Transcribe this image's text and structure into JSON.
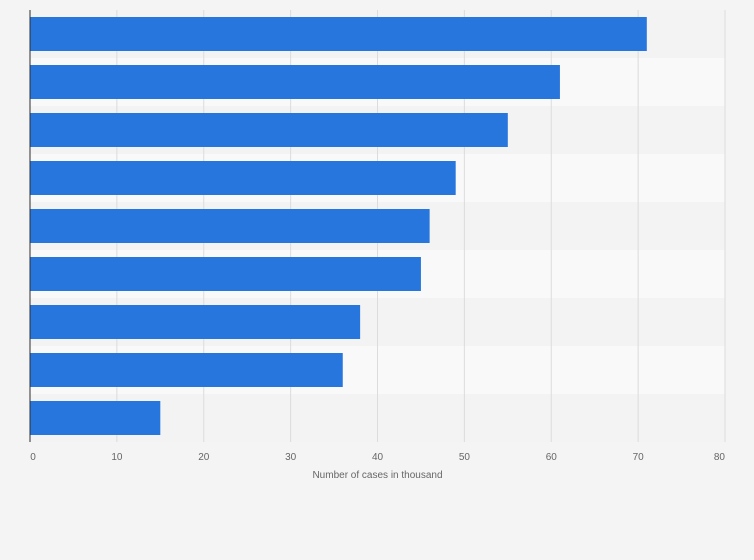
{
  "chart_data": {
    "type": "bar",
    "orientation": "horizontal",
    "categories": [
      "",
      "",
      "",
      "",
      "",
      "",
      "",
      "",
      ""
    ],
    "values": [
      71,
      61,
      55,
      49,
      46,
      45,
      38,
      36,
      15
    ],
    "xlabel": "Number of cases in thousand",
    "ylabel": "",
    "xlim": [
      0,
      80
    ],
    "xticks": [
      0,
      10,
      20,
      30,
      40,
      50,
      60,
      70,
      80
    ],
    "xtick_labels": [
      "0",
      "10",
      "20",
      "30",
      "40",
      "50",
      "60",
      "70",
      "80"
    ],
    "grid": true,
    "legend": "none",
    "colors": {
      "bar": "#2776de",
      "band_dark": "#f3f3f3",
      "band_light": "#f9f9f9",
      "gridline": "#dcdcdc",
      "axis_line": "#2d2d2d",
      "background": "#f4f4f4"
    }
  }
}
